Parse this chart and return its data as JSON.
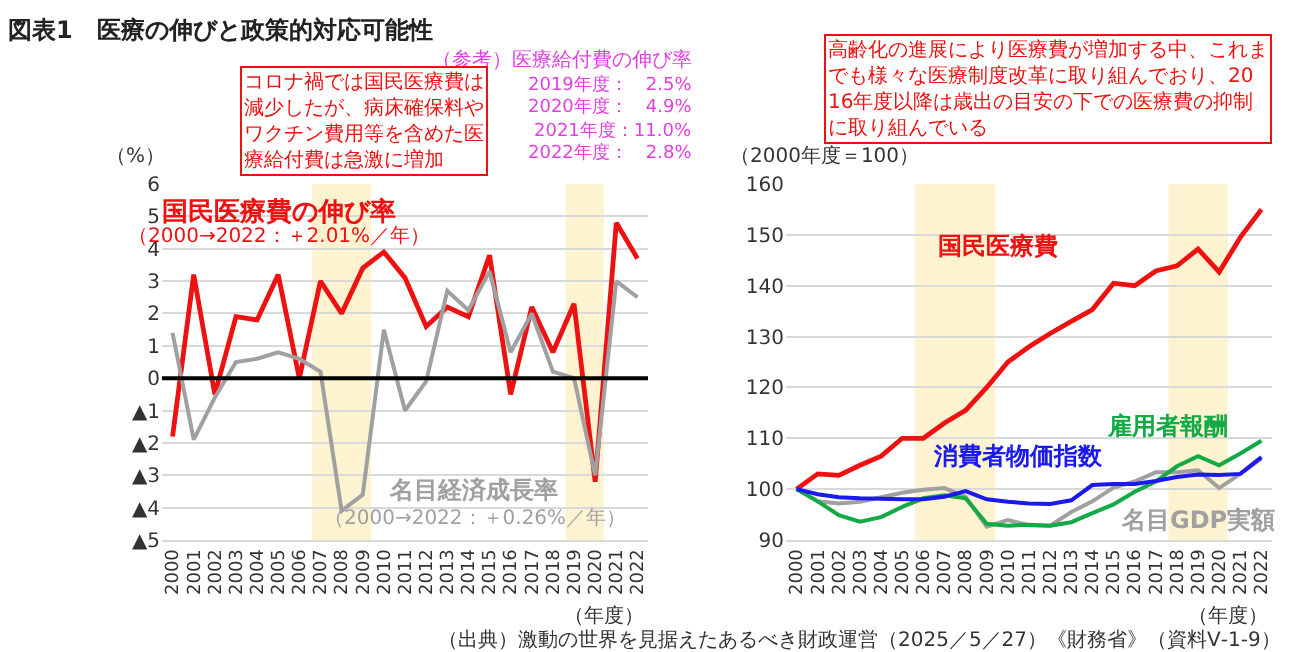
{
  "chart_data": [
    {
      "type": "line",
      "title": "図表1　医療の伸びと政策的対応可能性",
      "ylabel": "（%）",
      "xlabel": "（年度）",
      "categories": [
        "2000",
        "2001",
        "2002",
        "2003",
        "2004",
        "2005",
        "2006",
        "2007",
        "2008",
        "2009",
        "2010",
        "2011",
        "2012",
        "2013",
        "2014",
        "2015",
        "2016",
        "2017",
        "2018",
        "2019",
        "2020",
        "2021",
        "2022"
      ],
      "series": [
        {
          "name": "国民医療費の伸び率",
          "color": "#ee1111",
          "values": [
            -1.8,
            3.2,
            -0.5,
            1.9,
            1.8,
            3.2,
            0.0,
            3.0,
            2.0,
            3.4,
            3.9,
            3.1,
            1.6,
            2.2,
            1.9,
            3.8,
            -0.5,
            2.2,
            0.8,
            2.3,
            -3.2,
            4.8,
            3.7
          ]
        },
        {
          "name": "名目経済成長率",
          "color": "#a0a0a0",
          "values": [
            1.4,
            -1.9,
            -0.6,
            0.5,
            0.6,
            0.8,
            0.6,
            0.2,
            -4.1,
            -3.6,
            1.5,
            -1.0,
            -0.1,
            2.7,
            2.1,
            3.3,
            0.8,
            2.0,
            0.2,
            0.0,
            -3.0,
            3.0,
            2.5
          ]
        }
      ],
      "ylim": [
        -5,
        6
      ],
      "yticks": [
        {
          "value": -5,
          "label": "▲5"
        },
        {
          "value": -4,
          "label": "▲4"
        },
        {
          "value": -3,
          "label": "▲3"
        },
        {
          "value": -2,
          "label": "▲2"
        },
        {
          "value": -1,
          "label": "▲1"
        },
        0,
        1,
        2,
        3,
        4,
        5,
        6
      ],
      "grid": "y",
      "marker": "none",
      "line_style": "solid",
      "ref_lines": [
        {
          "axis": "y",
          "value": 0,
          "color": "#000000"
        }
      ],
      "bands": [
        {
          "axis": "x",
          "from": "2007",
          "to": "2009",
          "color": "#fdf3d0"
        },
        {
          "axis": "x",
          "from": "2019",
          "to": "2020",
          "color": "#fdf3d0"
        }
      ],
      "annotations": [
        "（2000→2022：＋2.01%／年）",
        "（2000→2022：＋0.26%／年）",
        "（参考）医療給付費の伸び率",
        "2019年度：　2.5%",
        "2020年度：　4.9%",
        "2021年度：11.0%",
        "2022年度：　2.8%",
        "コロナ禍では国民医療費は減少したが、病床確保料やワクチン費用等を含めた医療給付費は急激に増加"
      ]
    },
    {
      "type": "line",
      "ylabel": "（2000年度＝100）",
      "xlabel": "（年度）",
      "categories": [
        "2000",
        "2001",
        "2002",
        "2003",
        "2004",
        "2005",
        "2006",
        "2007",
        "2008",
        "2009",
        "2010",
        "2011",
        "2012",
        "2013",
        "2014",
        "2015",
        "2016",
        "2017",
        "2018",
        "2019",
        "2020",
        "2021",
        "2022"
      ],
      "series": [
        {
          "name": "国民医療費",
          "color": "#ee1111",
          "values": [
            100,
            103,
            102.7,
            104.7,
            106.5,
            110,
            110,
            113,
            115.5,
            120,
            125,
            128,
            130.6,
            133,
            135.3,
            140.5,
            140,
            142.9,
            143.9,
            147.2,
            142.7,
            149.5,
            155
          ]
        },
        {
          "name": "名目GDP実額",
          "color": "#a0a0a0",
          "values": [
            100,
            97.6,
            97.2,
            97.5,
            98.4,
            99.3,
            99.9,
            100.2,
            98.5,
            92.6,
            93.9,
            92.9,
            92.8,
            95.5,
            97.6,
            100.3,
            101.5,
            103.3,
            103.3,
            103.7,
            100.2,
            103,
            106
          ]
        },
        {
          "name": "雇用者報酬",
          "color": "#11aa44",
          "values": [
            100,
            97.6,
            94.9,
            93.6,
            94.5,
            96.5,
            98.2,
            98.8,
            98.2,
            93.2,
            92.8,
            93,
            92.8,
            93.5,
            95.3,
            97,
            99.5,
            101.5,
            104.5,
            106.5,
            104.7,
            107,
            109.5
          ]
        },
        {
          "name": "消費者物価指数",
          "color": "#1a1aee",
          "values": [
            100,
            99,
            98.4,
            98.2,
            98.1,
            98,
            98,
            98.5,
            99.6,
            98,
            97.5,
            97.2,
            97.1,
            97.8,
            100.8,
            101,
            101,
            101.6,
            102.4,
            102.9,
            102.8,
            103,
            106.3
          ]
        }
      ],
      "ylim": [
        90,
        160
      ],
      "yticks": [
        90,
        100,
        110,
        120,
        130,
        140,
        150,
        160
      ],
      "grid": "y",
      "marker": "none",
      "line_style": "solid",
      "bands": [
        {
          "axis": "x",
          "from": "2006",
          "to": "2009",
          "color": "#fdf3d0"
        },
        {
          "axis": "x",
          "from": "2018",
          "to": "2020",
          "color": "#fdf3d0"
        }
      ],
      "annotations": [
        "高齢化の進展により医療費が増加する中、これまでも様々な医療制度改革に取り組んでおり、2016年度以降は歳出の目安の下での医療費の抑制に取り組んでいる",
        "（出典）激動の世界を見据えたあるべき財政運営（2025／5／27）《財務省》（資料Ⅴ-1-9）"
      ]
    }
  ]
}
